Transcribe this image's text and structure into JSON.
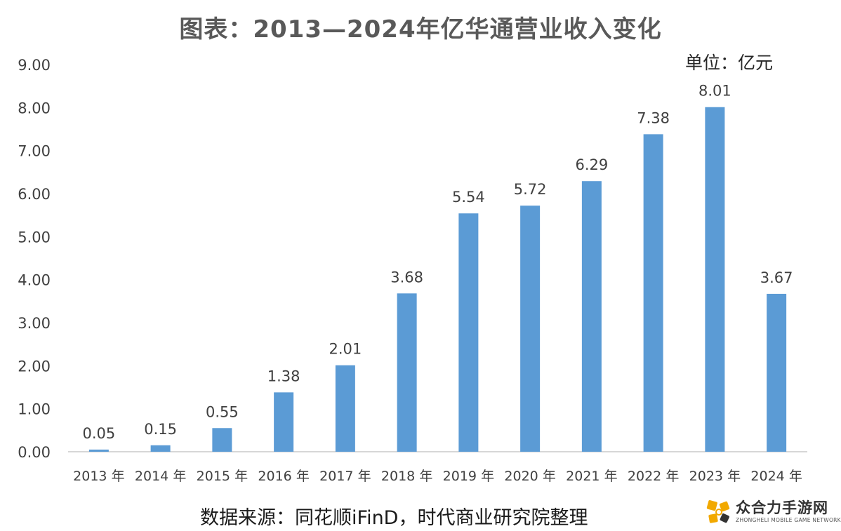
{
  "chart_data": {
    "type": "bar",
    "title": "图表：2013—2024年亿华通营业收入变化",
    "unit_label": "单位：亿元",
    "source": "数据来源：同花顺iFinD，时代商业研究院整理",
    "categories": [
      "2013 年",
      "2014 年",
      "2015 年",
      "2016 年",
      "2017 年",
      "2018 年",
      "2019 年",
      "2020 年",
      "2021 年",
      "2022 年",
      "2023 年",
      "2024 年"
    ],
    "values": [
      0.05,
      0.15,
      0.55,
      1.38,
      2.01,
      3.68,
      5.54,
      5.72,
      6.29,
      7.38,
      8.01,
      3.67
    ],
    "data_labels": [
      "0.05",
      "0.15",
      "0.55",
      "1.38",
      "2.01",
      "3.68",
      "5.54",
      "5.72",
      "6.29",
      "7.38",
      "8.01",
      "3.67"
    ],
    "y_ticks": [
      "0.00",
      "1.00",
      "2.00",
      "3.00",
      "4.00",
      "5.00",
      "6.00",
      "7.00",
      "8.00",
      "9.00"
    ],
    "ylim": [
      0,
      9
    ],
    "grid": false,
    "legend": "none",
    "bar_color": "#5B9BD5"
  },
  "watermark": {
    "cn": "众合力手游网",
    "en": "ZHONGHELI MOBILE GAME NETWORK"
  }
}
